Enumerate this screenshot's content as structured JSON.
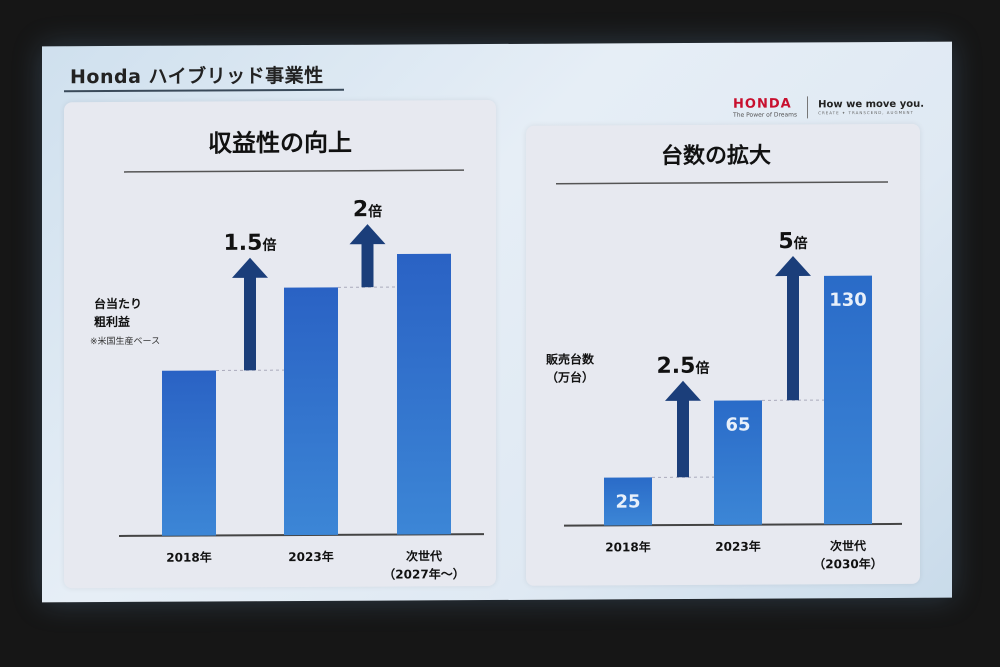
{
  "slide": {
    "title": "Honda ハイブリッド事業性",
    "brand": {
      "logo": "HONDA",
      "logo_sub": "The Power of Dreams",
      "tagline": "How we move you.",
      "tagline_sub": "CREATE ✦ TRANSCEND, AUGMENT"
    }
  },
  "chart_data": [
    {
      "type": "bar",
      "title": "収益性の向上",
      "ylabel": [
        "台当たり",
        "粗利益"
      ],
      "note": "※米国生産ベース",
      "categories": [
        [
          "2018年"
        ],
        [
          "2023年"
        ],
        [
          "次世代",
          "（2027年～）"
        ]
      ],
      "values": [
        1,
        1.5,
        1.7
      ],
      "data_labels": [
        "",
        "",
        ""
      ],
      "ylim": [
        0,
        2
      ],
      "bar_color": "#2a62c4",
      "arrows": [
        {
          "from": 0,
          "to": 1,
          "label_num": "1.5",
          "label_unit": "倍"
        },
        {
          "from": 1,
          "to": 2,
          "label_num": "2",
          "label_unit": "倍"
        }
      ]
    },
    {
      "type": "bar",
      "title": "台数の拡大",
      "ylabel": [
        "販売台数",
        "（万台）"
      ],
      "categories": [
        [
          "2018年"
        ],
        [
          "2023年"
        ],
        [
          "次世代",
          "（2030年）"
        ]
      ],
      "values": [
        25,
        65,
        130
      ],
      "data_labels": [
        "25",
        "65",
        "130"
      ],
      "ylim": [
        0,
        135
      ],
      "bar_color": "#2a6bc8",
      "arrows": [
        {
          "from": 0,
          "to": 1,
          "label_num": "2.5",
          "label_unit": "倍"
        },
        {
          "from": 1,
          "to": 2,
          "label_num": "5",
          "label_unit": "倍"
        }
      ]
    }
  ]
}
